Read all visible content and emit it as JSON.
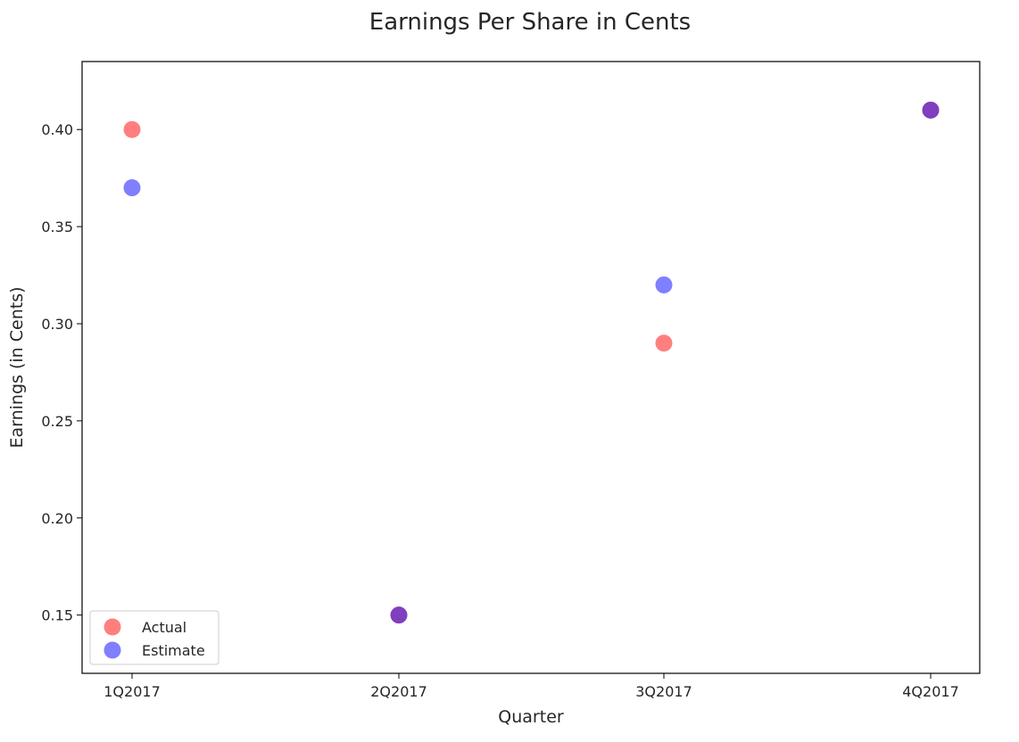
{
  "chart_data": {
    "type": "scatter",
    "title": "Earnings Per Share in Cents",
    "xlabel": "Quarter",
    "ylabel": "Earnings (in Cents)",
    "categories": [
      "1Q2017",
      "2Q2017",
      "3Q2017",
      "4Q2017"
    ],
    "y_ticks": [
      "0.15",
      "0.20",
      "0.25",
      "0.30",
      "0.35",
      "0.40"
    ],
    "ylim": [
      0.12,
      0.435
    ],
    "grid": false,
    "legend_position": "lower-left",
    "series": [
      {
        "name": "Actual",
        "color": "#ff0000",
        "alpha": 0.5,
        "values": [
          0.4,
          0.15,
          0.29,
          0.41
        ]
      },
      {
        "name": "Estimate",
        "color": "#0000ff",
        "alpha": 0.5,
        "values": [
          0.37,
          0.15,
          0.32,
          0.41
        ]
      }
    ]
  }
}
